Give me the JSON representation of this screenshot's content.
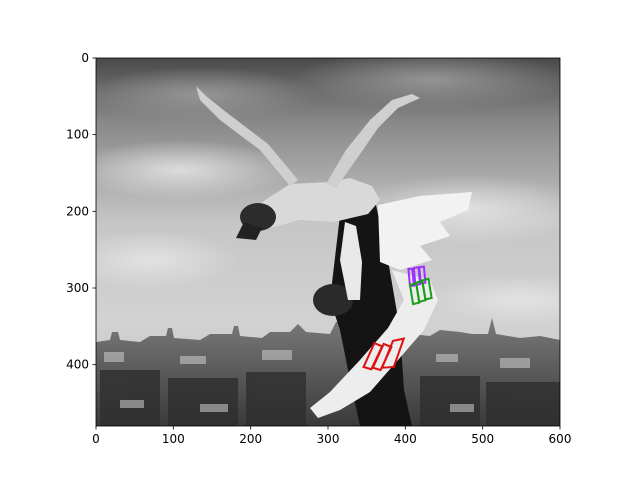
{
  "chart_data": {
    "type": "image",
    "title": "",
    "xlabel": "",
    "ylabel": "",
    "xlim": [
      0,
      600
    ],
    "ylim": [
      480,
      0
    ],
    "y_inverted": true,
    "grid": false,
    "legend": "none",
    "x_ticks": [
      0,
      100,
      200,
      300,
      400,
      500,
      600
    ],
    "y_ticks": [
      0,
      100,
      200,
      300,
      400
    ],
    "image": {
      "subject": "black-and-white photo of two dancers performing a lift against a cloudy sky above a city skyline; the lifted dancer has white wings overlaid",
      "palette": "grayscale"
    },
    "overlays": [
      {
        "name": "purple-group",
        "color": "#9b30ff",
        "quads": [
          [
            [
              404,
              275
            ],
            [
              409,
              275
            ],
            [
              411,
              297
            ],
            [
              406,
              297
            ]
          ],
          [
            [
              411,
              274
            ],
            [
              417,
              273
            ],
            [
              419,
              295
            ],
            [
              413,
              296
            ]
          ],
          [
            [
              418,
              273
            ],
            [
              424,
              272
            ],
            [
              426,
              293
            ],
            [
              420,
              294
            ]
          ]
        ]
      },
      {
        "name": "green-group",
        "color": "#1a9e1a",
        "quads": [
          [
            [
              406,
              296
            ],
            [
              414,
              294
            ],
            [
              418,
              319
            ],
            [
              410,
              321
            ]
          ],
          [
            [
              414,
              293
            ],
            [
              422,
              291
            ],
            [
              426,
              316
            ],
            [
              418,
              318
            ]
          ],
          [
            [
              422,
              290
            ],
            [
              430,
              288
            ],
            [
              434,
              313
            ],
            [
              426,
              315
            ]
          ]
        ]
      },
      {
        "name": "red-group",
        "color": "#e01010",
        "quads": [
          [
            [
              346,
              403
            ],
            [
              360,
              372
            ],
            [
              370,
              376
            ],
            [
              356,
              406
            ]
          ],
          [
            [
              358,
              404
            ],
            [
              372,
              373
            ],
            [
              382,
              377
            ],
            [
              368,
              407
            ]
          ],
          [
            [
              370,
              404
            ],
            [
              384,
              369
            ],
            [
              398,
              366
            ],
            [
              385,
              403
            ]
          ]
        ]
      }
    ]
  }
}
